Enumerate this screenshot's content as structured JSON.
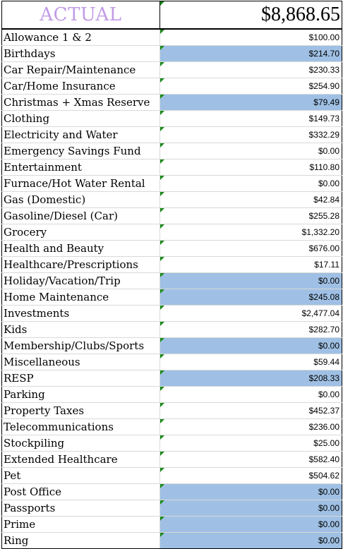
{
  "header": {
    "label": "ACTUAL",
    "total": "$8,868.65"
  },
  "colors": {
    "header_label": "#c29be6",
    "highlight": "#9fc0e4",
    "note_marker": "#1a8a1a"
  },
  "rows": [
    {
      "category": "Allowance 1 & 2",
      "amount": "$100.00",
      "highlighted": false
    },
    {
      "category": "Birthdays",
      "amount": "$214.70",
      "highlighted": true
    },
    {
      "category": "Car Repair/Maintenance",
      "amount": "$230.33",
      "highlighted": false
    },
    {
      "category": "Car/Home Insurance",
      "amount": "$254.90",
      "highlighted": false
    },
    {
      "category": "Christmas + Xmas Reserve",
      "amount": "$79.49",
      "highlighted": true
    },
    {
      "category": "Clothing",
      "amount": "$149.73",
      "highlighted": false
    },
    {
      "category": "Electricity and Water",
      "amount": "$332.29",
      "highlighted": false
    },
    {
      "category": "Emergency Savings Fund",
      "amount": "$0.00",
      "highlighted": false
    },
    {
      "category": "Entertainment",
      "amount": "$110.80",
      "highlighted": false
    },
    {
      "category": "Furnace/Hot Water Rental",
      "amount": "$0.00",
      "highlighted": false
    },
    {
      "category": "Gas (Domestic)",
      "amount": "$42.84",
      "highlighted": false
    },
    {
      "category": "Gasoline/Diesel (Car)",
      "amount": "$255.28",
      "highlighted": false
    },
    {
      "category": "Grocery",
      "amount": "$1,332.20",
      "highlighted": false
    },
    {
      "category": "Health and Beauty",
      "amount": "$676.00",
      "highlighted": false
    },
    {
      "category": "Healthcare/Prescriptions",
      "amount": "$17.11",
      "highlighted": false
    },
    {
      "category": "Holiday/Vacation/Trip",
      "amount": "$0.00",
      "highlighted": true
    },
    {
      "category": "Home Maintenance",
      "amount": "$245.08",
      "highlighted": true
    },
    {
      "category": "Investments",
      "amount": "$2,477.04",
      "highlighted": false
    },
    {
      "category": "Kids",
      "amount": "$282.70",
      "highlighted": false
    },
    {
      "category": "Membership/Clubs/Sports",
      "amount": "$0.00",
      "highlighted": true
    },
    {
      "category": "Miscellaneous",
      "amount": "$59.44",
      "highlighted": false
    },
    {
      "category": "RESP",
      "amount": "$208.33",
      "highlighted": true
    },
    {
      "category": "Parking",
      "amount": "$0.00",
      "highlighted": false
    },
    {
      "category": "Property Taxes",
      "amount": "$452.37",
      "highlighted": false
    },
    {
      "category": "Telecommunications",
      "amount": "$236.00",
      "highlighted": false
    },
    {
      "category": "Stockpiling",
      "amount": "$25.00",
      "highlighted": false
    },
    {
      "category": "Extended Healthcare",
      "amount": "$582.40",
      "highlighted": false
    },
    {
      "category": "Pet",
      "amount": "$504.62",
      "highlighted": false
    },
    {
      "category": "Post Office",
      "amount": "$0.00",
      "highlighted": true
    },
    {
      "category": "Passports",
      "amount": "$0.00",
      "highlighted": true
    },
    {
      "category": "Prime",
      "amount": "$0.00",
      "highlighted": true
    },
    {
      "category": "Ring",
      "amount": "$0.00",
      "highlighted": true
    }
  ]
}
